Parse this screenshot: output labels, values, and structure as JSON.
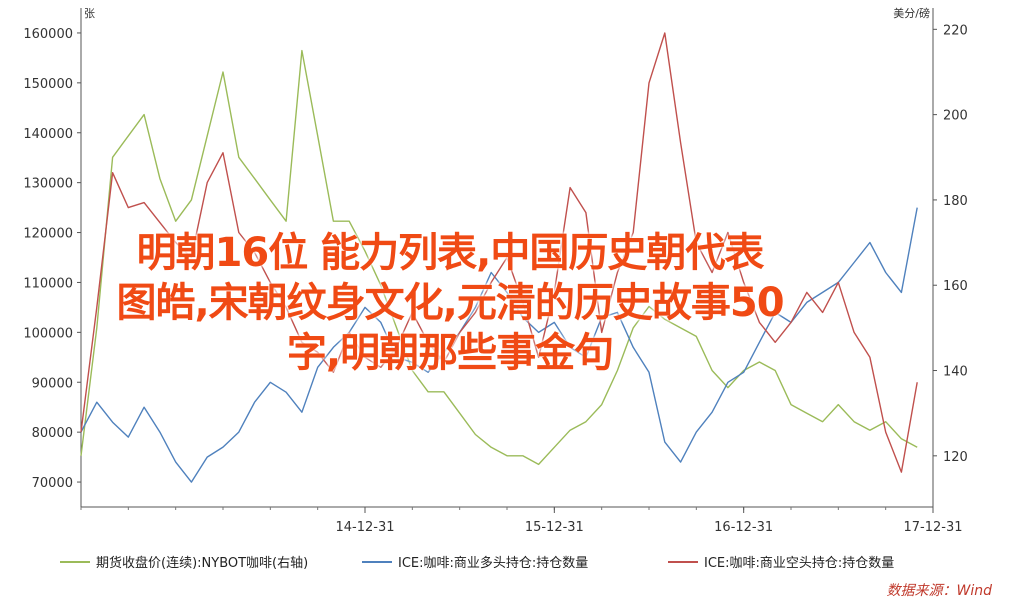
{
  "chart_data": {
    "type": "line",
    "left_axis_unit": "张",
    "right_axis_unit": "美分/磅",
    "left_ylim": [
      65000,
      165000
    ],
    "left_ticks": [
      70000,
      80000,
      90000,
      100000,
      110000,
      120000,
      130000,
      140000,
      150000,
      160000
    ],
    "right_ylim": [
      108,
      225
    ],
    "right_ticks": [
      120,
      140,
      160,
      180,
      200,
      220
    ],
    "x_ticks": [
      "14-12-31",
      "15-12-31",
      "16-12-31",
      "17-12-31"
    ],
    "x_range": [
      "2013-07",
      "2018-01"
    ],
    "series": [
      {
        "name": "期货收盘价(连续):NYBOT咖啡(右轴)",
        "axis": "right",
        "color": "#9bbb59",
        "x": [
          "2013-07",
          "2013-08",
          "2013-09",
          "2013-10",
          "2013-11",
          "2013-12",
          "2014-01",
          "2014-02",
          "2014-03",
          "2014-04",
          "2014-05",
          "2014-06",
          "2014-07",
          "2014-08",
          "2014-09",
          "2014-10",
          "2014-11",
          "2014-12",
          "2015-01",
          "2015-02",
          "2015-03",
          "2015-04",
          "2015-05",
          "2015-06",
          "2015-07",
          "2015-08",
          "2015-09",
          "2015-10",
          "2015-11",
          "2015-12",
          "2016-01",
          "2016-02",
          "2016-03",
          "2016-04",
          "2016-05",
          "2016-06",
          "2016-07",
          "2016-08",
          "2016-09",
          "2016-10",
          "2016-11",
          "2016-12",
          "2017-01",
          "2017-02",
          "2017-03",
          "2017-04",
          "2017-05",
          "2017-06",
          "2017-07",
          "2017-08",
          "2017-09",
          "2017-10",
          "2017-11",
          "2017-12"
        ],
        "y": [
          120,
          150,
          190,
          195,
          200,
          185,
          175,
          180,
          195,
          210,
          190,
          185,
          180,
          175,
          215,
          195,
          175,
          175,
          168,
          160,
          150,
          140,
          135,
          135,
          130,
          125,
          122,
          120,
          120,
          118,
          122,
          126,
          128,
          132,
          140,
          150,
          155,
          152,
          150,
          148,
          140,
          136,
          140,
          142,
          140,
          132,
          130,
          128,
          132,
          128,
          126,
          128,
          124,
          122
        ]
      },
      {
        "name": "ICE:咖啡:商业多头持仓:持仓数量",
        "axis": "left",
        "color": "#4f81bd",
        "x": [
          "2013-07",
          "2013-08",
          "2013-09",
          "2013-10",
          "2013-11",
          "2013-12",
          "2014-01",
          "2014-02",
          "2014-03",
          "2014-04",
          "2014-05",
          "2014-06",
          "2014-07",
          "2014-08",
          "2014-09",
          "2014-10",
          "2014-11",
          "2014-12",
          "2015-01",
          "2015-02",
          "2015-03",
          "2015-04",
          "2015-05",
          "2015-06",
          "2015-07",
          "2015-08",
          "2015-09",
          "2015-10",
          "2015-11",
          "2015-12",
          "2016-01",
          "2016-02",
          "2016-03",
          "2016-04",
          "2016-05",
          "2016-06",
          "2016-07",
          "2016-08",
          "2016-09",
          "2016-10",
          "2016-11",
          "2016-12",
          "2017-01",
          "2017-02",
          "2017-03",
          "2017-04",
          "2017-05",
          "2017-06",
          "2017-07",
          "2017-08",
          "2017-09",
          "2017-10",
          "2017-11",
          "2017-12"
        ],
        "y": [
          80000,
          86000,
          82000,
          79000,
          85000,
          80000,
          74000,
          70000,
          75000,
          77000,
          80000,
          86000,
          90000,
          88000,
          84000,
          93000,
          97000,
          100000,
          105000,
          102000,
          95000,
          94000,
          92000,
          96000,
          100000,
          105000,
          112000,
          108000,
          103000,
          100000,
          102000,
          97000,
          95000,
          103000,
          104000,
          97000,
          92000,
          78000,
          74000,
          80000,
          84000,
          90000,
          92000,
          98000,
          104000,
          102000,
          106000,
          108000,
          110000,
          114000,
          118000,
          112000,
          108000,
          125000
        ]
      },
      {
        "name": "ICE:咖啡:商业空头持仓:持仓数量",
        "axis": "left",
        "color": "#c0504d",
        "x": [
          "2013-07",
          "2013-08",
          "2013-09",
          "2013-10",
          "2013-11",
          "2013-12",
          "2014-01",
          "2014-02",
          "2014-03",
          "2014-04",
          "2014-05",
          "2014-06",
          "2014-07",
          "2014-08",
          "2014-09",
          "2014-10",
          "2014-11",
          "2014-12",
          "2015-01",
          "2015-02",
          "2015-03",
          "2015-04",
          "2015-05",
          "2015-06",
          "2015-07",
          "2015-08",
          "2015-09",
          "2015-10",
          "2015-11",
          "2015-12",
          "2016-01",
          "2016-02",
          "2016-03",
          "2016-04",
          "2016-05",
          "2016-06",
          "2016-07",
          "2016-08",
          "2016-09",
          "2016-10",
          "2016-11",
          "2016-12",
          "2017-01",
          "2017-02",
          "2017-03",
          "2017-04",
          "2017-05",
          "2017-06",
          "2017-07",
          "2017-08",
          "2017-09",
          "2017-10",
          "2017-11",
          "2017-12"
        ],
        "y": [
          80000,
          105000,
          132000,
          125000,
          126000,
          122000,
          118000,
          115000,
          130000,
          136000,
          120000,
          116000,
          110000,
          105000,
          98000,
          96000,
          92000,
          100000,
          95000,
          93000,
          97000,
          104000,
          98000,
          94000,
          100000,
          104000,
          110000,
          115000,
          106000,
          95000,
          108000,
          129000,
          124000,
          100000,
          112000,
          120000,
          150000,
          160000,
          138000,
          118000,
          112000,
          120000,
          110000,
          102000,
          98000,
          102000,
          108000,
          104000,
          110000,
          100000,
          95000,
          80000,
          72000,
          90000
        ]
      }
    ],
    "source": "数据来源：Wind"
  },
  "overlay": {
    "line1": "明朝16位 能力列表,中国历史朝代表",
    "line2": "图皓,宋朝纹身文化,元清的历史故事50",
    "line3": "字,明朝那些事金句"
  }
}
